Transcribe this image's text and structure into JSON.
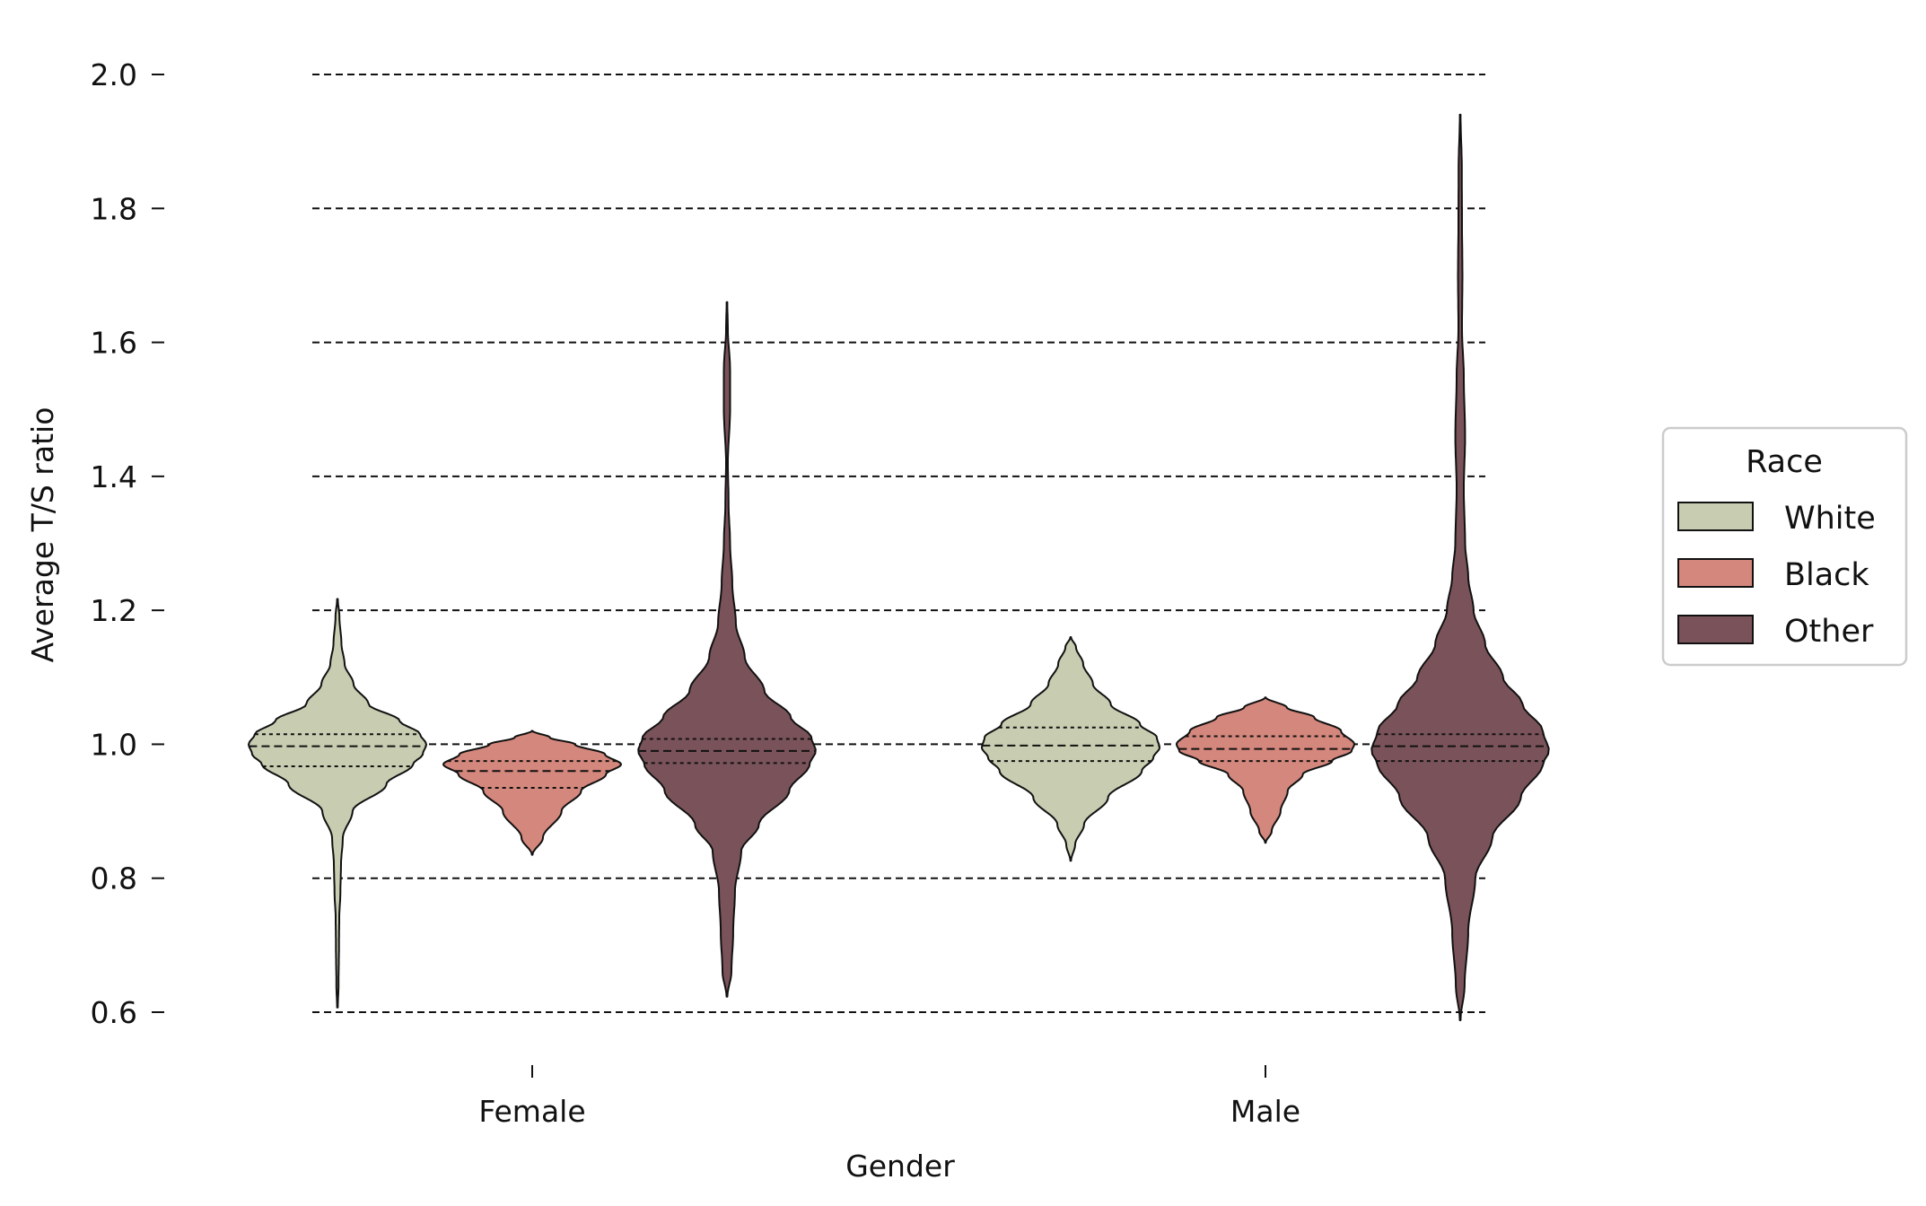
{
  "chart_data": {
    "type": "violin",
    "xlabel": "Gender",
    "ylabel": "Average T/S ratio",
    "ylim": [
      0.6,
      2.0
    ],
    "yticks": [
      "0.6",
      "0.8",
      "1.0",
      "1.2",
      "1.4",
      "1.6",
      "1.8",
      "2.0"
    ],
    "categories": [
      "Female",
      "Male"
    ],
    "grid": "horizontal dashed",
    "inner": "quartile",
    "legend": {
      "title": "Race",
      "placement": "center-right",
      "entries": [
        "White",
        "Black",
        "Other"
      ]
    },
    "series": [
      {
        "name": "White",
        "color": "#c8ccb0",
        "violins": [
          {
            "category": "Female",
            "min": 0.607,
            "max": 1.217,
            "q1": 0.967,
            "median": 0.997,
            "q3": 1.015,
            "density": [
              [
                0.607,
                0.004
              ],
              [
                0.64,
                0.012
              ],
              [
                0.7,
                0.017
              ],
              [
                0.74,
                0.02
              ],
              [
                0.78,
                0.033
              ],
              [
                0.82,
                0.04
              ],
              [
                0.86,
                0.06
              ],
              [
                0.9,
                0.17
              ],
              [
                0.94,
                0.55
              ],
              [
                0.97,
                0.85
              ],
              [
                0.985,
                0.96
              ],
              [
                1.0,
                1.0
              ],
              [
                1.015,
                0.93
              ],
              [
                1.035,
                0.7
              ],
              [
                1.06,
                0.35
              ],
              [
                1.09,
                0.18
              ],
              [
                1.12,
                0.08
              ],
              [
                1.15,
                0.045
              ],
              [
                1.19,
                0.022
              ],
              [
                1.217,
                0.004
              ]
            ]
          },
          {
            "category": "Male",
            "min": 0.826,
            "max": 1.16,
            "q1": 0.975,
            "median": 0.998,
            "q3": 1.025,
            "density": [
              [
                0.826,
                0.004
              ],
              [
                0.85,
                0.05
              ],
              [
                0.88,
                0.15
              ],
              [
                0.92,
                0.42
              ],
              [
                0.96,
                0.8
              ],
              [
                0.98,
                0.93
              ],
              [
                0.995,
                1.0
              ],
              [
                1.01,
                0.97
              ],
              [
                1.03,
                0.78
              ],
              [
                1.06,
                0.45
              ],
              [
                1.09,
                0.25
              ],
              [
                1.12,
                0.14
              ],
              [
                1.145,
                0.06
              ],
              [
                1.16,
                0.004
              ]
            ]
          }
        ]
      },
      {
        "name": "Black",
        "color": "#d4877c",
        "violins": [
          {
            "category": "Female",
            "min": 0.835,
            "max": 1.02,
            "q1": 0.935,
            "median": 0.96,
            "q3": 0.975,
            "density": [
              [
                0.835,
                0.004
              ],
              [
                0.86,
                0.12
              ],
              [
                0.9,
                0.33
              ],
              [
                0.93,
                0.55
              ],
              [
                0.955,
                0.83
              ],
              [
                0.97,
                1.0
              ],
              [
                0.985,
                0.82
              ],
              [
                1.0,
                0.48
              ],
              [
                1.01,
                0.2
              ],
              [
                1.02,
                0.004
              ]
            ]
          },
          {
            "category": "Male",
            "min": 0.853,
            "max": 1.07,
            "q1": 0.975,
            "median": 0.993,
            "q3": 1.012,
            "density": [
              [
                0.853,
                0.004
              ],
              [
                0.87,
                0.07
              ],
              [
                0.9,
                0.17
              ],
              [
                0.93,
                0.25
              ],
              [
                0.955,
                0.42
              ],
              [
                0.975,
                0.75
              ],
              [
                0.99,
                0.97
              ],
              [
                1.0,
                1.0
              ],
              [
                1.02,
                0.85
              ],
              [
                1.04,
                0.55
              ],
              [
                1.055,
                0.24
              ],
              [
                1.07,
                0.004
              ]
            ]
          }
        ]
      },
      {
        "name": "Other",
        "color": "#7a535a",
        "violins": [
          {
            "category": "Female",
            "min": 0.623,
            "max": 1.66,
            "q1": 0.972,
            "median": 0.99,
            "q3": 1.008,
            "density": [
              [
                0.623,
                0.004
              ],
              [
                0.66,
                0.05
              ],
              [
                0.72,
                0.07
              ],
              [
                0.78,
                0.09
              ],
              [
                0.84,
                0.16
              ],
              [
                0.88,
                0.36
              ],
              [
                0.93,
                0.7
              ],
              [
                0.97,
                0.93
              ],
              [
                0.99,
                1.0
              ],
              [
                1.01,
                0.95
              ],
              [
                1.04,
                0.72
              ],
              [
                1.08,
                0.42
              ],
              [
                1.13,
                0.2
              ],
              [
                1.18,
                0.1
              ],
              [
                1.24,
                0.06
              ],
              [
                1.3,
                0.035
              ],
              [
                1.36,
                0.018
              ],
              [
                1.42,
                0.01
              ],
              [
                1.5,
                0.035
              ],
              [
                1.56,
                0.035
              ],
              [
                1.62,
                0.01
              ],
              [
                1.66,
                0.004
              ]
            ]
          },
          {
            "category": "Male",
            "min": 0.588,
            "max": 1.94,
            "q1": 0.975,
            "median": 0.997,
            "q3": 1.015,
            "density": [
              [
                0.588,
                0.004
              ],
              [
                0.64,
                0.05
              ],
              [
                0.72,
                0.09
              ],
              [
                0.8,
                0.17
              ],
              [
                0.86,
                0.36
              ],
              [
                0.92,
                0.68
              ],
              [
                0.97,
                0.93
              ],
              [
                0.99,
                1.0
              ],
              [
                1.02,
                0.93
              ],
              [
                1.06,
                0.7
              ],
              [
                1.1,
                0.48
              ],
              [
                1.15,
                0.28
              ],
              [
                1.2,
                0.15
              ],
              [
                1.25,
                0.09
              ],
              [
                1.3,
                0.055
              ],
              [
                1.38,
                0.04
              ],
              [
                1.46,
                0.055
              ],
              [
                1.55,
                0.04
              ],
              [
                1.62,
                0.02
              ],
              [
                1.7,
                0.025
              ],
              [
                1.78,
                0.02
              ],
              [
                1.86,
                0.018
              ],
              [
                1.94,
                0.004
              ]
            ]
          }
        ]
      }
    ]
  }
}
